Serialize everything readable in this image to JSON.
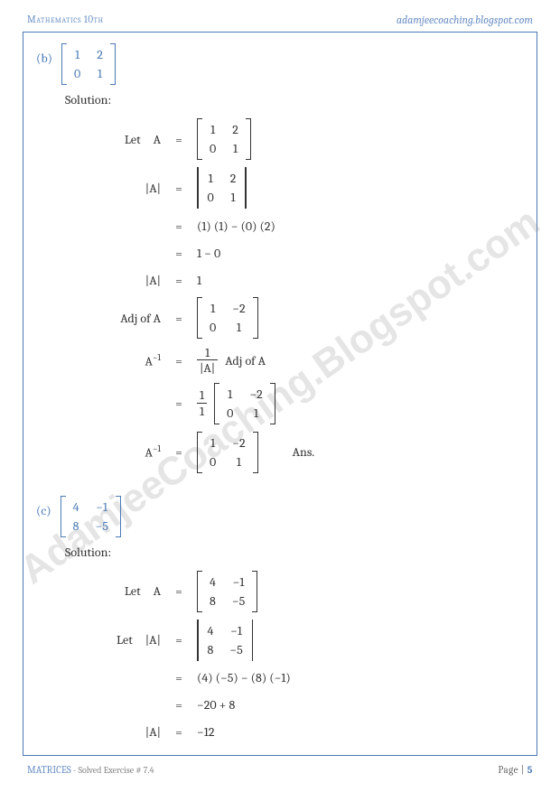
{
  "header": {
    "left": "Mathematics 10th",
    "right": "adamjeecoaching.blogspot.com"
  },
  "footer": {
    "label": "MATRICES",
    "sub": " - Solved Exercise # 7.4",
    "page_prefix": "Page |",
    "page_num": "5"
  },
  "watermark": "AdamjeeCoaching.Blogspot.com",
  "colors": {
    "accent": "#4a7ab5",
    "text": "#333333",
    "watermark": "rgba(150,150,150,0.25)"
  },
  "problems": {
    "b": {
      "label": "(b)",
      "matrix": [
        "1",
        "2",
        "0",
        "1"
      ],
      "solution_label": "Solution:",
      "steps": [
        {
          "lhs": "Let A",
          "rhs_type": "matrix",
          "rhs": [
            "1",
            "2",
            "0",
            "1"
          ]
        },
        {
          "lhs": "|A|",
          "rhs_type": "det",
          "rhs": [
            "1",
            "2",
            "0",
            "1"
          ]
        },
        {
          "lhs": "",
          "rhs_type": "text",
          "rhs": "(1) (1) − (0) (2)"
        },
        {
          "lhs": "",
          "rhs_type": "text",
          "rhs": "1 − 0"
        },
        {
          "lhs": "|A|",
          "rhs_type": "text",
          "rhs": "1"
        },
        {
          "lhs": "Adj of A",
          "rhs_type": "matrix",
          "rhs": [
            "1",
            "−2",
            "0",
            "1"
          ]
        },
        {
          "lhs": "A⁻¹",
          "rhs_type": "frac_adj",
          "rhs_num": "1",
          "rhs_den": "|A|",
          "rhs_suffix": "Adj of A"
        },
        {
          "lhs": "",
          "rhs_type": "frac_matrix",
          "rhs_num": "1",
          "rhs_den": "1",
          "rhs": [
            "1",
            "−2",
            "0",
            "1"
          ]
        },
        {
          "lhs": "A⁻¹",
          "rhs_type": "matrix_ans",
          "rhs": [
            "1",
            "−2",
            "0",
            "1"
          ],
          "suffix": "Ans."
        }
      ]
    },
    "c": {
      "label": "(c)",
      "matrix": [
        "4",
        "−1",
        "8",
        "−5"
      ],
      "solution_label": "Solution:",
      "steps": [
        {
          "lhs": "Let A",
          "rhs_type": "matrix",
          "rhs": [
            "4",
            "−1",
            "8",
            "−5"
          ]
        },
        {
          "lhs": "Let |A|",
          "rhs_type": "det",
          "rhs": [
            "4",
            "−1",
            "8",
            "−5"
          ]
        },
        {
          "lhs": "",
          "rhs_type": "text",
          "rhs": "(4) (−5) − (8) (−1)"
        },
        {
          "lhs": "",
          "rhs_type": "text",
          "rhs": "−20 + 8"
        },
        {
          "lhs": "|A|",
          "rhs_type": "text",
          "rhs": "−12"
        }
      ]
    }
  }
}
